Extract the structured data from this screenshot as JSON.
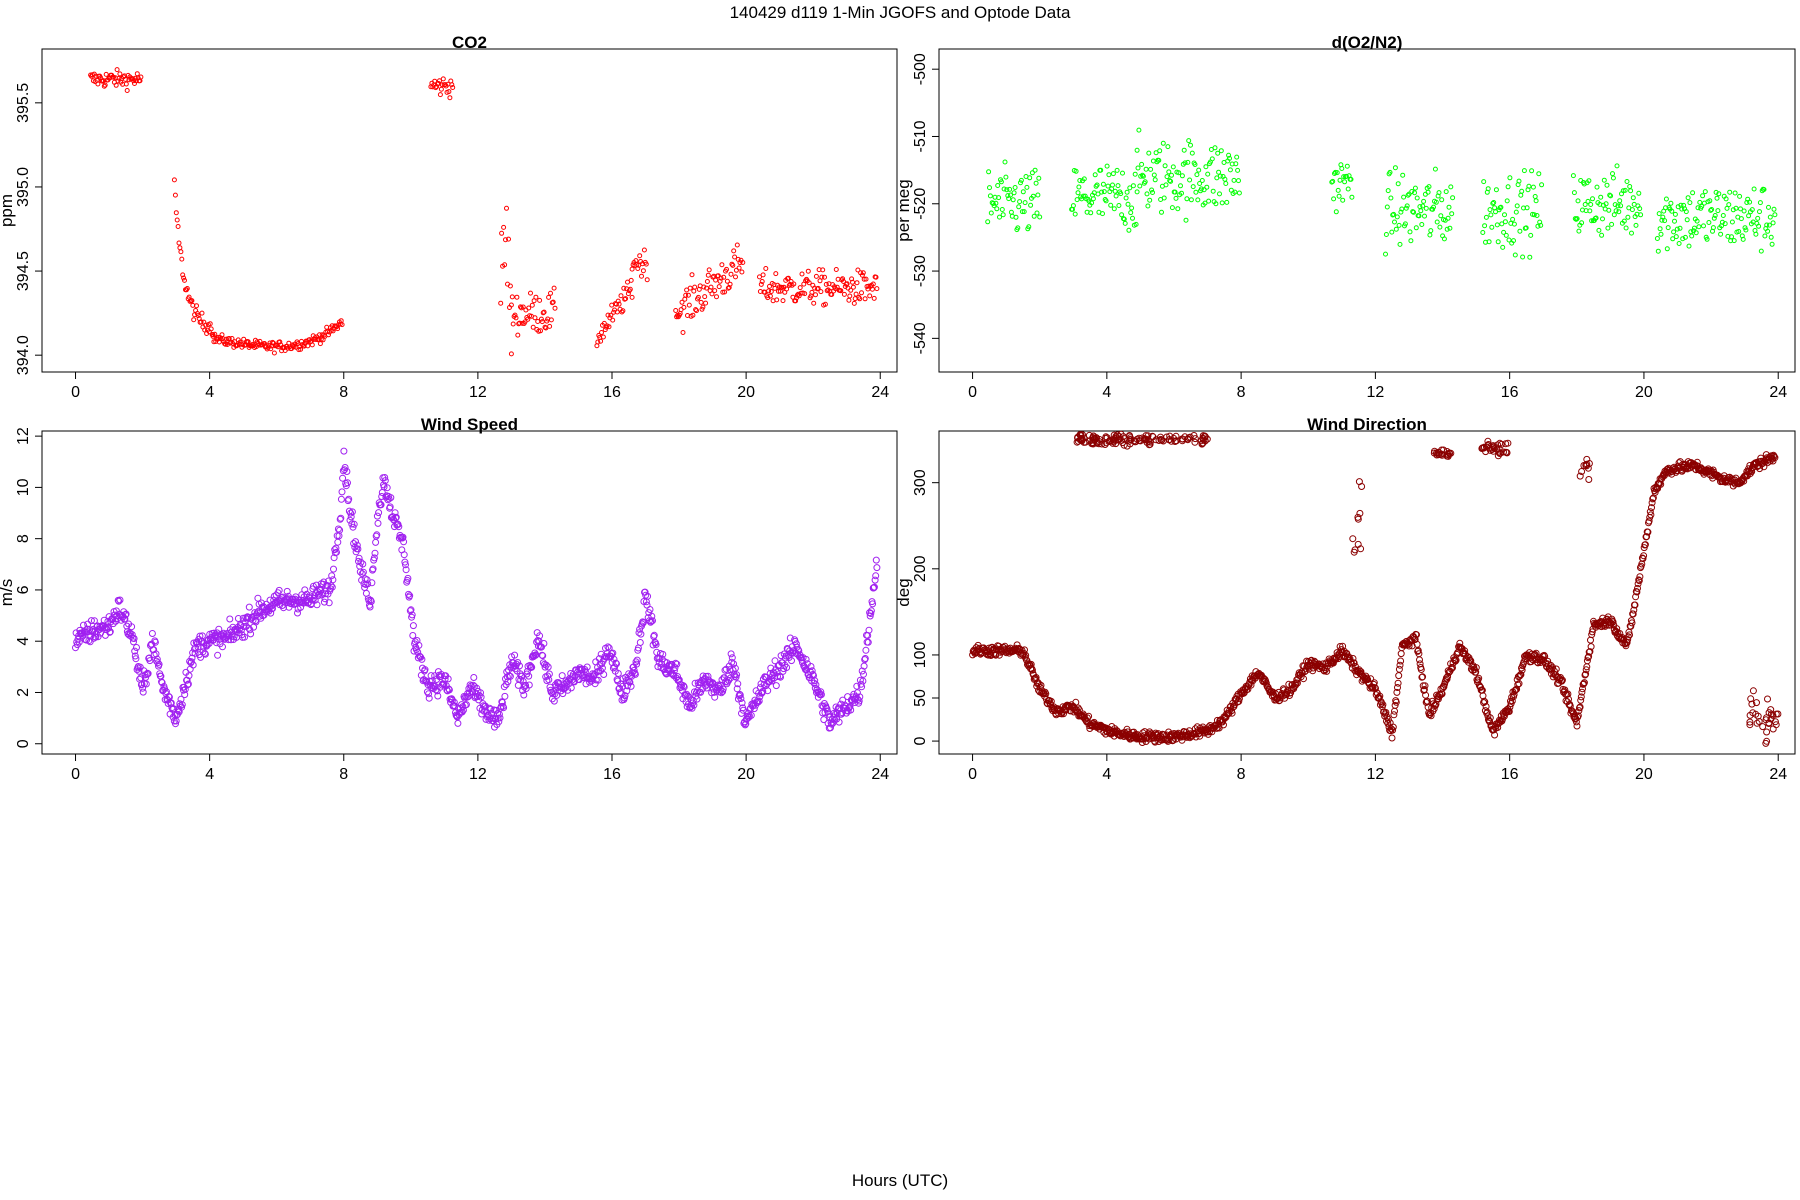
{
  "figure": {
    "title": "140429   d119   1-Min  JGOFS and Optode Data",
    "xlabel": "Hours (UTC)"
  },
  "chart_data": [
    {
      "id": "co2",
      "type": "scatter",
      "title": "CO2",
      "xlabel": "",
      "ylabel": "ppm",
      "xlim": [
        -1,
        24.5
      ],
      "ylim": [
        393.9,
        395.82
      ],
      "xticks": [
        0,
        4,
        8,
        12,
        16,
        20,
        24
      ],
      "yticks": [
        394.0,
        394.5,
        395.0,
        395.5
      ],
      "ytick_labels": [
        "394.0",
        "394.5",
        "395.0",
        "395.5"
      ],
      "color": "#ff0000",
      "marker_radius": 2,
      "segments": [
        [
          0.45,
          1.95,
          395.64,
          0.05,
          "flat"
        ],
        [
          2.95,
          4.1,
          395.0,
          0.05,
          "decay"
        ],
        [
          4.1,
          7.95,
          394.1,
          0.03,
          "bowl"
        ],
        [
          10.6,
          11.25,
          395.6,
          0.06,
          "flat"
        ],
        [
          12.65,
          13.0,
          394.3,
          0.3,
          "spike"
        ],
        [
          13.0,
          14.3,
          394.25,
          0.12,
          "flat"
        ],
        [
          15.55,
          16.6,
          394.2,
          0.07,
          "rise"
        ],
        [
          16.6,
          17.05,
          394.55,
          0.08,
          "flat"
        ],
        [
          17.9,
          19.9,
          394.35,
          0.12,
          "rise"
        ],
        [
          20.4,
          23.9,
          394.4,
          0.1,
          "flat"
        ]
      ]
    },
    {
      "id": "o2n2",
      "type": "scatter",
      "title": "d(O2/N2)",
      "xlabel": "",
      "ylabel": "per meg",
      "xlim": [
        -1,
        24.5
      ],
      "ylim": [
        -545,
        -497
      ],
      "xticks": [
        0,
        4,
        8,
        12,
        16,
        20,
        24
      ],
      "yticks": [
        -540,
        -530,
        -520,
        -510,
        -500
      ],
      "ytick_labels": [
        "-540",
        "-530",
        "-520",
        "-510",
        "-500"
      ],
      "color": "#00ff00",
      "marker_radius": 2,
      "segments": [
        [
          0.45,
          2.0,
          -520,
          5,
          "flat"
        ],
        [
          2.95,
          4.9,
          -519,
          5,
          "flat"
        ],
        [
          4.9,
          7.95,
          -516,
          5.5,
          "flat"
        ],
        [
          10.7,
          11.3,
          -517,
          4,
          "flat"
        ],
        [
          12.3,
          14.3,
          -521,
          5.5,
          "flat"
        ],
        [
          15.2,
          16.95,
          -521,
          5.5,
          "flat"
        ],
        [
          17.9,
          19.9,
          -520,
          5,
          "flat"
        ],
        [
          20.4,
          23.9,
          -522,
          5,
          "flat"
        ]
      ]
    },
    {
      "id": "wind-speed",
      "type": "scatter",
      "title": "Wind Speed",
      "xlabel": "",
      "ylabel": "m/s",
      "xlim": [
        -1,
        24.5
      ],
      "ylim": [
        -0.4,
        12.2
      ],
      "xticks": [
        0,
        4,
        8,
        12,
        16,
        20,
        24
      ],
      "yticks": [
        0,
        2,
        4,
        6,
        8,
        10,
        12
      ],
      "ytick_labels": [
        "0",
        "2",
        "4",
        "6",
        "8",
        "10",
        "12"
      ],
      "color": "#a020f0",
      "marker_radius": 3,
      "profile": [
        [
          0,
          4.0
        ],
        [
          0.5,
          4.4
        ],
        [
          1.0,
          4.6
        ],
        [
          1.3,
          5.3
        ],
        [
          1.7,
          4.2
        ],
        [
          2.0,
          2.0
        ],
        [
          2.3,
          4.1
        ],
        [
          2.6,
          2.2
        ],
        [
          3.0,
          1.0
        ],
        [
          3.3,
          2.5
        ],
        [
          3.6,
          3.8
        ],
        [
          4.0,
          4.0
        ],
        [
          4.5,
          4.1
        ],
        [
          5.0,
          4.6
        ],
        [
          5.5,
          5.2
        ],
        [
          6.0,
          5.5
        ],
        [
          6.5,
          5.6
        ],
        [
          7.0,
          5.6
        ],
        [
          7.3,
          5.9
        ],
        [
          7.6,
          6.0
        ],
        [
          7.9,
          9.0
        ],
        [
          8.0,
          11.2
        ],
        [
          8.2,
          9.0
        ],
        [
          8.5,
          6.8
        ],
        [
          8.8,
          5.6
        ],
        [
          9.0,
          8.8
        ],
        [
          9.2,
          10.3
        ],
        [
          9.5,
          8.8
        ],
        [
          9.8,
          7.6
        ],
        [
          10.1,
          4.0
        ],
        [
          10.5,
          2.3
        ],
        [
          11.0,
          2.5
        ],
        [
          11.4,
          1.0
        ],
        [
          11.8,
          2.2
        ],
        [
          12.2,
          1.3
        ],
        [
          12.6,
          0.8
        ],
        [
          13.0,
          3.2
        ],
        [
          13.4,
          2.2
        ],
        [
          13.8,
          4.2
        ],
        [
          14.2,
          2.0
        ],
        [
          14.6,
          2.2
        ],
        [
          15.0,
          2.8
        ],
        [
          15.5,
          2.5
        ],
        [
          15.9,
          3.8
        ],
        [
          16.3,
          2.0
        ],
        [
          16.7,
          3.0
        ],
        [
          17.0,
          5.8
        ],
        [
          17.4,
          3.2
        ],
        [
          17.9,
          2.8
        ],
        [
          18.3,
          1.5
        ],
        [
          18.8,
          2.5
        ],
        [
          19.2,
          2.0
        ],
        [
          19.6,
          3.2
        ],
        [
          20.0,
          0.8
        ],
        [
          20.5,
          2.2
        ],
        [
          21.0,
          3.0
        ],
        [
          21.5,
          3.8
        ],
        [
          22.0,
          2.5
        ],
        [
          22.5,
          0.8
        ],
        [
          23.0,
          1.5
        ],
        [
          23.4,
          2.0
        ],
        [
          23.7,
          5.0
        ],
        [
          23.9,
          7.0
        ]
      ],
      "noise": 0.45
    },
    {
      "id": "wind-direction",
      "type": "scatter",
      "title": "Wind Direction",
      "xlabel": "",
      "ylabel": "deg",
      "xlim": [
        -1,
        24.5
      ],
      "ylim": [
        -15,
        360
      ],
      "xticks": [
        0,
        4,
        8,
        12,
        16,
        20,
        24
      ],
      "yticks": [
        0,
        50,
        100,
        200,
        300
      ],
      "ytick_labels": [
        "0",
        "50",
        "100",
        "200",
        "300"
      ],
      "color": "#8b0000",
      "marker_radius": 3,
      "profile": [
        [
          0,
          105
        ],
        [
          1.5,
          105
        ],
        [
          2.0,
          60
        ],
        [
          2.5,
          35
        ],
        [
          3.0,
          40
        ],
        [
          3.5,
          20
        ],
        [
          4.2,
          10
        ],
        [
          5.0,
          5
        ],
        [
          6.0,
          5
        ],
        [
          7.0,
          12
        ],
        [
          7.5,
          25
        ],
        [
          8.0,
          55
        ],
        [
          8.5,
          80
        ],
        [
          9.0,
          50
        ],
        [
          9.5,
          60
        ],
        [
          10.0,
          90
        ],
        [
          10.5,
          85
        ],
        [
          11.0,
          105
        ],
        [
          11.5,
          80
        ],
        [
          12.0,
          60
        ],
        [
          12.5,
          10
        ],
        [
          12.8,
          110
        ],
        [
          13.2,
          120
        ],
        [
          13.6,
          30
        ],
        [
          14.0,
          60
        ],
        [
          14.5,
          110
        ],
        [
          15.0,
          80
        ],
        [
          15.5,
          10
        ],
        [
          16.0,
          40
        ],
        [
          16.5,
          100
        ],
        [
          17.0,
          95
        ],
        [
          17.5,
          70
        ],
        [
          18.0,
          20
        ],
        [
          18.5,
          135
        ],
        [
          19.0,
          140
        ],
        [
          19.5,
          110
        ],
        [
          20.0,
          220
        ],
        [
          20.3,
          290
        ],
        [
          20.7,
          315
        ],
        [
          21.5,
          320
        ],
        [
          22.3,
          305
        ],
        [
          22.8,
          300
        ],
        [
          23.3,
          320
        ],
        [
          23.9,
          330
        ]
      ],
      "noise": 6,
      "extra_clusters": [
        [
          3.1,
          7.0,
          350,
          6
        ],
        [
          13.7,
          14.3,
          335,
          5
        ],
        [
          15.1,
          16.0,
          340,
          8
        ],
        [
          18.1,
          18.4,
          320,
          20
        ],
        [
          11.3,
          11.6,
          250,
          60
        ],
        [
          23.1,
          24.0,
          30,
          25
        ]
      ]
    }
  ]
}
